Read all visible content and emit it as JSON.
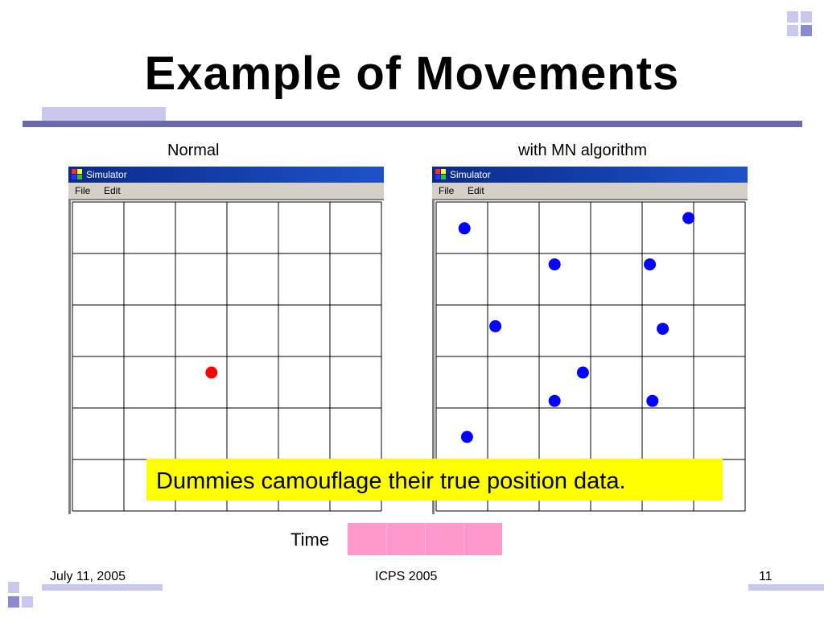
{
  "slide": {
    "title": "Example of Movements",
    "left_caption": "Normal",
    "right_caption": "with MN algorithm",
    "banner": "Dummies camouflage their true position data.",
    "time_label": "Time",
    "footer": {
      "date": "July 11, 2005",
      "conference": "ICPS 2005",
      "page": "11"
    }
  },
  "window": {
    "title": "Simulator",
    "menu": [
      "File",
      "Edit"
    ]
  },
  "grid": {
    "rows": 6,
    "cols": 6
  },
  "normal_sim": {
    "dots": [
      {
        "row": 3,
        "col": 2.7,
        "color": "#ff0000"
      }
    ]
  },
  "mn_sim": {
    "dots": [
      {
        "row": 0.2,
        "col": 0.55,
        "color": "#0000ff"
      },
      {
        "row": 0.0,
        "col": 4.9,
        "color": "#0000ff"
      },
      {
        "row": 0.9,
        "col": 2.3,
        "color": "#0000ff"
      },
      {
        "row": 0.9,
        "col": 4.15,
        "color": "#0000ff"
      },
      {
        "row": 2.1,
        "col": 1.15,
        "color": "#0000ff"
      },
      {
        "row": 2.15,
        "col": 4.4,
        "color": "#0000ff"
      },
      {
        "row": 3.0,
        "col": 2.85,
        "color": "#0000ff"
      },
      {
        "row": 3.55,
        "col": 2.3,
        "color": "#0000ff"
      },
      {
        "row": 3.55,
        "col": 4.2,
        "color": "#0000ff"
      },
      {
        "row": 4.25,
        "col": 0.6,
        "color": "#0000ff"
      }
    ]
  },
  "time_progress": {
    "segments": 4
  },
  "colors": {
    "accent_rule": "#6b6baa",
    "light_rule": "#c8c8ee",
    "banner": "#ffff00",
    "time_bar": "#ff99cc"
  }
}
